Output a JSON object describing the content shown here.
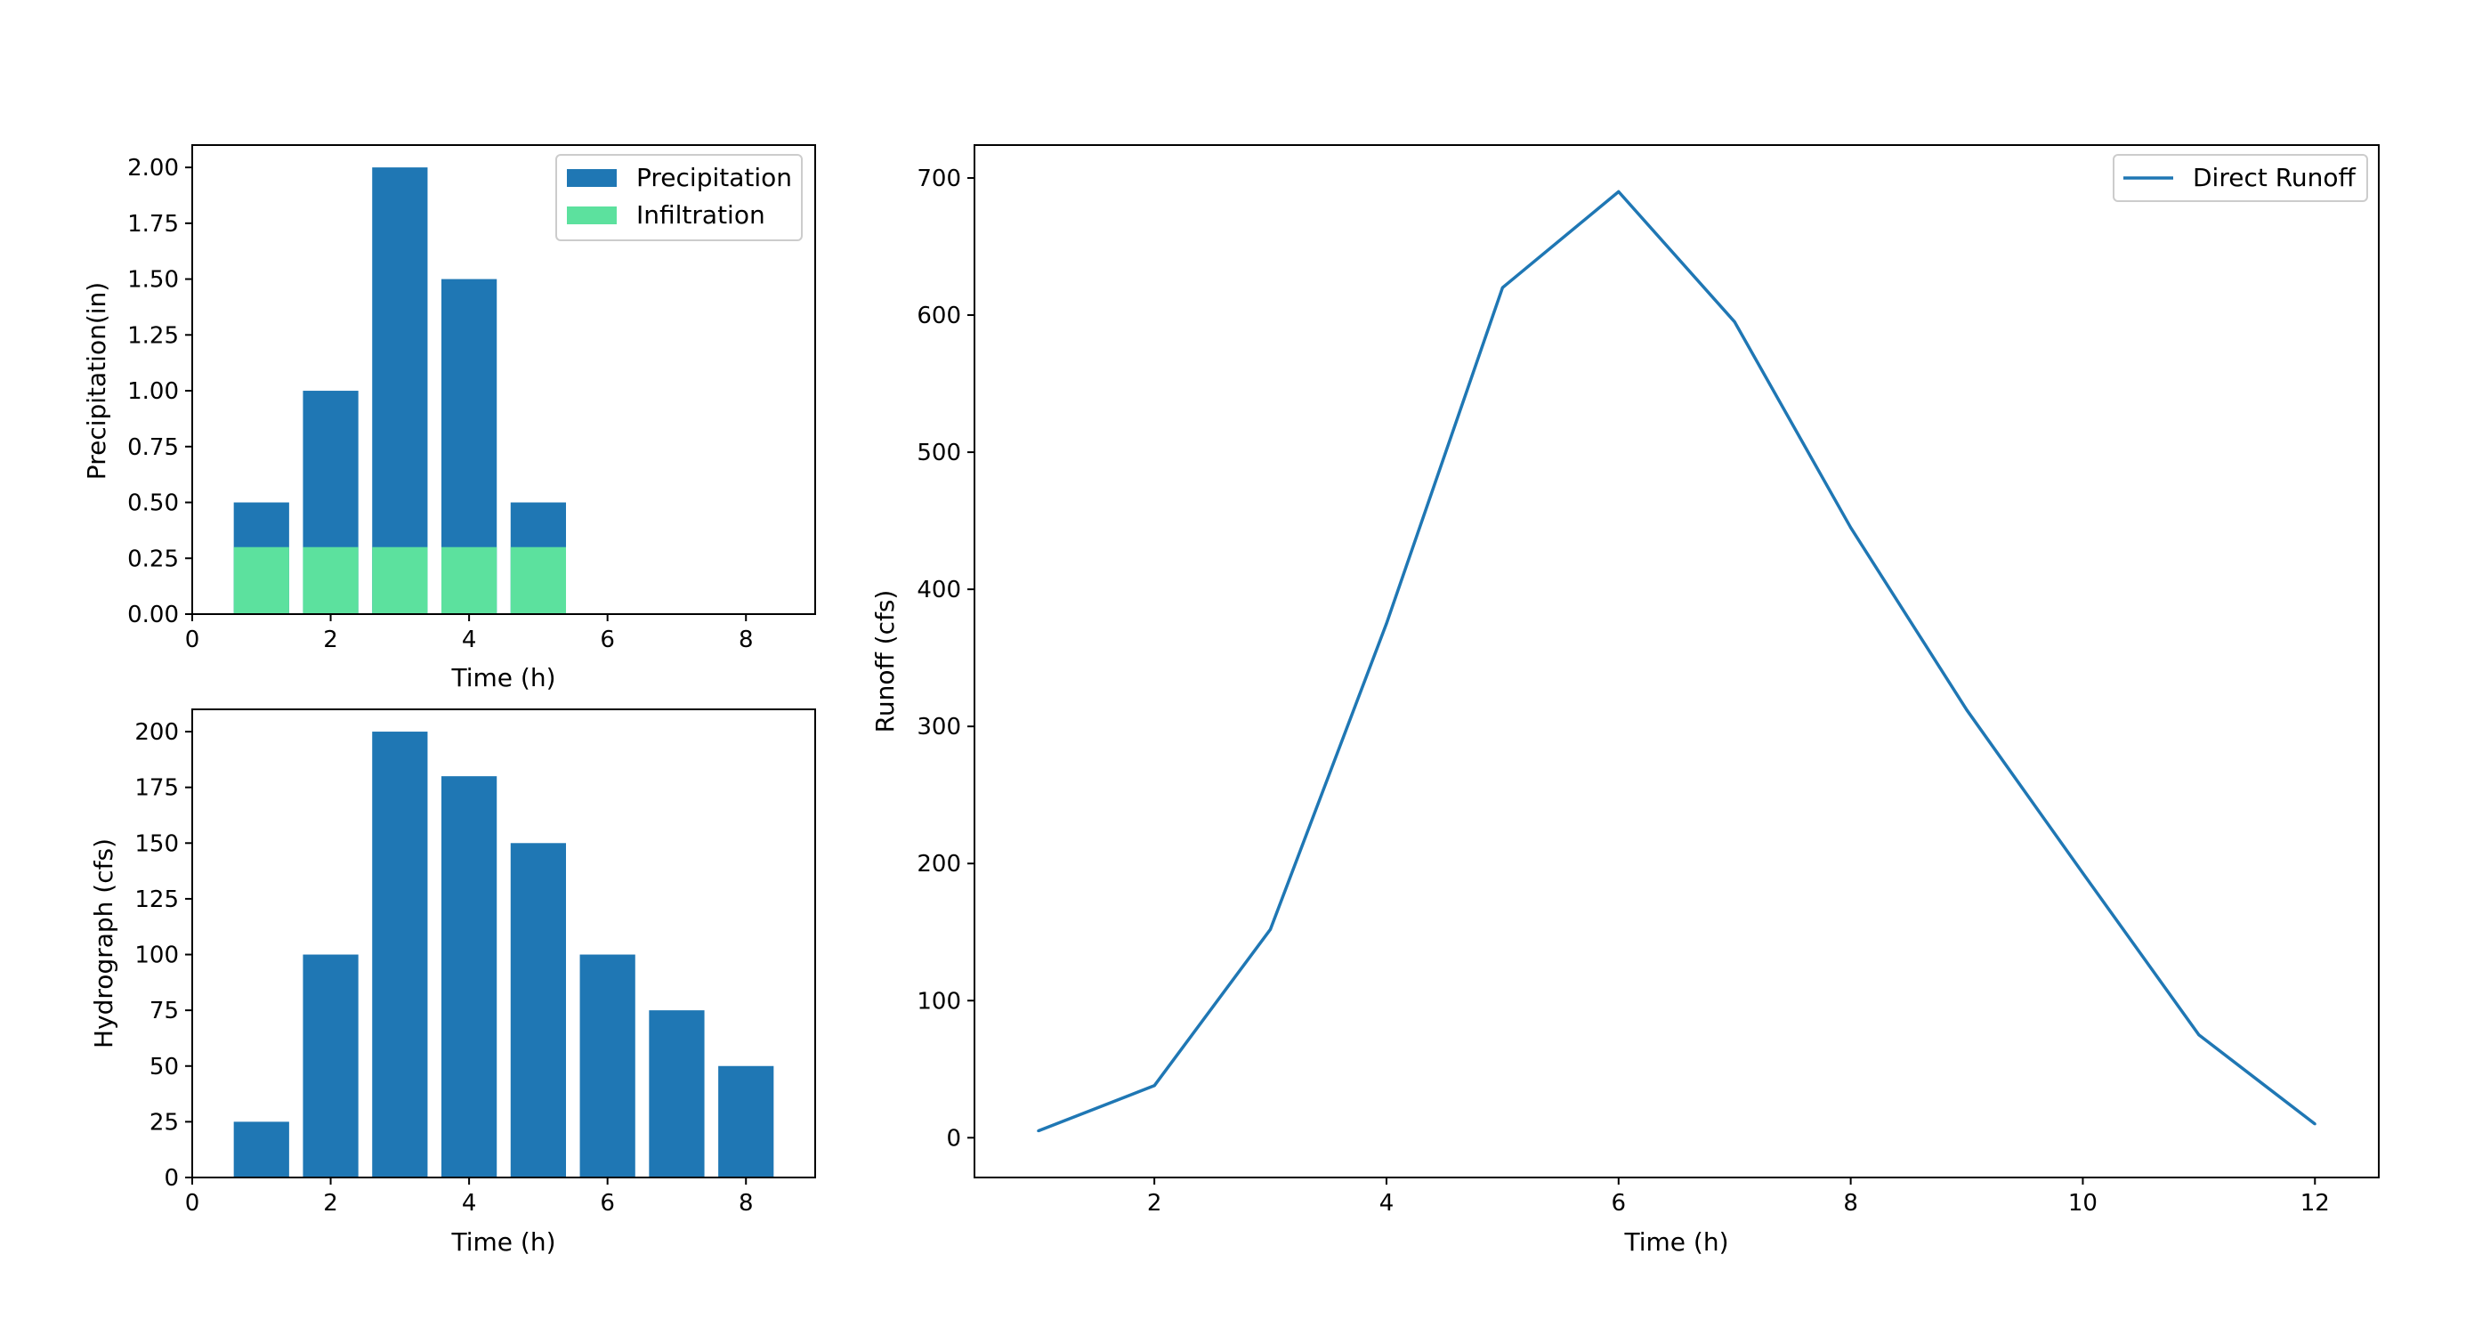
{
  "colors": {
    "precipitation": "#1f77b4",
    "infiltration": "#5ce19e",
    "runoff": "#1f77b4"
  },
  "chart_data": [
    {
      "type": "bar",
      "title": "",
      "xlabel": "Time (h)",
      "ylabel": "Precipitation(in)",
      "x": [
        1,
        2,
        3,
        4,
        5
      ],
      "series": [
        {
          "name": "Precipitation",
          "values": [
            0.5,
            1.0,
            2.0,
            1.5,
            0.5
          ]
        },
        {
          "name": "Infiltration",
          "values": [
            0.3,
            0.3,
            0.3,
            0.3,
            0.3
          ]
        }
      ],
      "xlim": [
        0,
        9
      ],
      "ylim": [
        0,
        2.1
      ],
      "xticks": [
        "0",
        "2",
        "4",
        "6",
        "8"
      ],
      "yticks": [
        "0.00",
        "0.25",
        "0.50",
        "0.75",
        "1.00",
        "1.25",
        "1.50",
        "1.75",
        "2.00"
      ],
      "legend": "top-right",
      "grid": false
    },
    {
      "type": "bar",
      "title": "",
      "xlabel": "Time (h)",
      "ylabel": "Hydrograph (cfs)",
      "x": [
        1,
        2,
        3,
        4,
        5,
        6,
        7,
        8
      ],
      "values": [
        25,
        100,
        200,
        180,
        150,
        100,
        75,
        50
      ],
      "xlim": [
        0,
        9
      ],
      "ylim": [
        0,
        210
      ],
      "xticks": [
        "0",
        "2",
        "4",
        "6",
        "8"
      ],
      "yticks": [
        "0",
        "25",
        "50",
        "75",
        "100",
        "125",
        "150",
        "175",
        "200"
      ],
      "grid": false
    },
    {
      "type": "line",
      "title": "",
      "xlabel": "Time (h)",
      "ylabel": "Runoff (cfs)",
      "x": [
        1,
        2,
        3,
        4,
        5,
        6,
        7,
        8,
        9,
        10,
        11,
        12
      ],
      "series": [
        {
          "name": "Direct Runoff",
          "values": [
            5,
            38,
            152,
            375,
            620,
            690,
            595,
            445,
            312,
            193,
            75,
            10
          ]
        }
      ],
      "xlim": [
        0.45,
        12.55
      ],
      "ylim": [
        -29,
        724
      ],
      "xticks": [
        "2",
        "4",
        "6",
        "8",
        "10",
        "12"
      ],
      "yticks": [
        "0",
        "100",
        "200",
        "300",
        "400",
        "500",
        "600",
        "700"
      ],
      "legend": "top-right",
      "grid": false
    }
  ]
}
